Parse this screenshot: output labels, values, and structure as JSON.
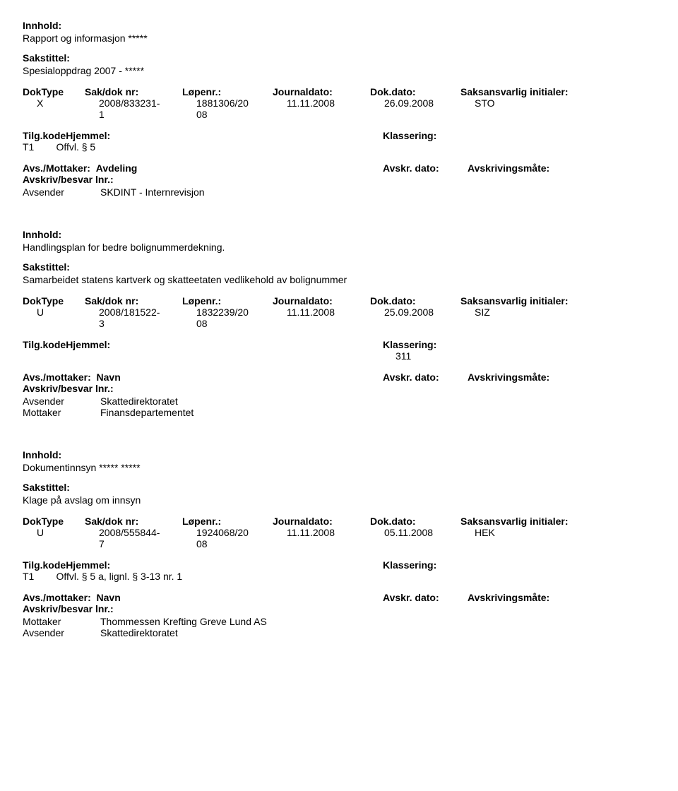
{
  "labels": {
    "innhold": "Innhold:",
    "sakstittel": "Sakstittel:",
    "doktype": "DokType",
    "sakdok": "Sak/dok nr:",
    "lopenr": "Løpenr.:",
    "journaldato": "Journaldato:",
    "dokdato": "Dok.dato:",
    "saksansvarlig": "Saksansvarlig initialer:",
    "tilgkode": "Tilg.kodeHjemmel:",
    "klassering": "Klassering:",
    "avsMottaker1": "Avs./Mottaker:",
    "avdeling": "Avdeling",
    "avsMottaker2": "Avs./mottaker:",
    "navn": "Navn",
    "avskrDato": "Avskr. dato:",
    "avskrMate": "Avskrivingsmåte:",
    "avskrivBesvar": "Avskriv/besvar lnr.:",
    "avsender": "Avsender",
    "mottaker": "Mottaker"
  },
  "records": [
    {
      "innhold": "Rapport og informasjon *****",
      "sakstittel": "Spesialoppdrag 2007 - *****",
      "doktype": "X",
      "sakdok_top": "2008/833231-",
      "sakdok_bot": "1",
      "lopenr_top": "1881306/20",
      "lopenr_bot": "08",
      "jdato": "11.11.2008",
      "ddato": "26.09.2008",
      "saks": "STO",
      "tilgkode_line": "T1        Offvl. § 5",
      "klassering": "",
      "avsmottaker_label_key": "avsMottaker1",
      "avsmottaker_value_key": "avdeling",
      "parties": [
        {
          "role": "avsender",
          "name": "SKDINT - Internrevisjon"
        }
      ]
    },
    {
      "innhold": "Handlingsplan for bedre bolignummerdekning.",
      "sakstittel": "Samarbeidet statens kartverk og skatteetaten vedlikehold av bolignummer",
      "doktype": "U",
      "sakdok_top": "2008/181522-",
      "sakdok_bot": "3",
      "lopenr_top": "1832239/20",
      "lopenr_bot": "08",
      "jdato": "11.11.2008",
      "ddato": "25.09.2008",
      "saks": "SIZ",
      "tilgkode_line": "",
      "klassering": "311",
      "avsmottaker_label_key": "avsMottaker2",
      "avsmottaker_value_key": "navn",
      "parties": [
        {
          "role": "avsender",
          "name": "Skattedirektoratet"
        },
        {
          "role": "mottaker",
          "name": "Finansdepartementet"
        }
      ]
    },
    {
      "innhold": "Dokumentinnsyn ***** *****",
      "sakstittel": "Klage på avslag om innsyn",
      "doktype": "U",
      "sakdok_top": "2008/555844-",
      "sakdok_bot": "7",
      "lopenr_top": "1924068/20",
      "lopenr_bot": "08",
      "jdato": "11.11.2008",
      "ddato": "05.11.2008",
      "saks": "HEK",
      "tilgkode_line": "T1        Offvl. § 5 a, lignl. § 3-13 nr. 1",
      "klassering": "",
      "avsmottaker_label_key": "avsMottaker2",
      "avsmottaker_value_key": "navn",
      "parties": [
        {
          "role": "mottaker",
          "name": "Thommessen Krefting Greve Lund AS"
        },
        {
          "role": "avsender",
          "name": "Skattedirektoratet"
        }
      ]
    }
  ]
}
